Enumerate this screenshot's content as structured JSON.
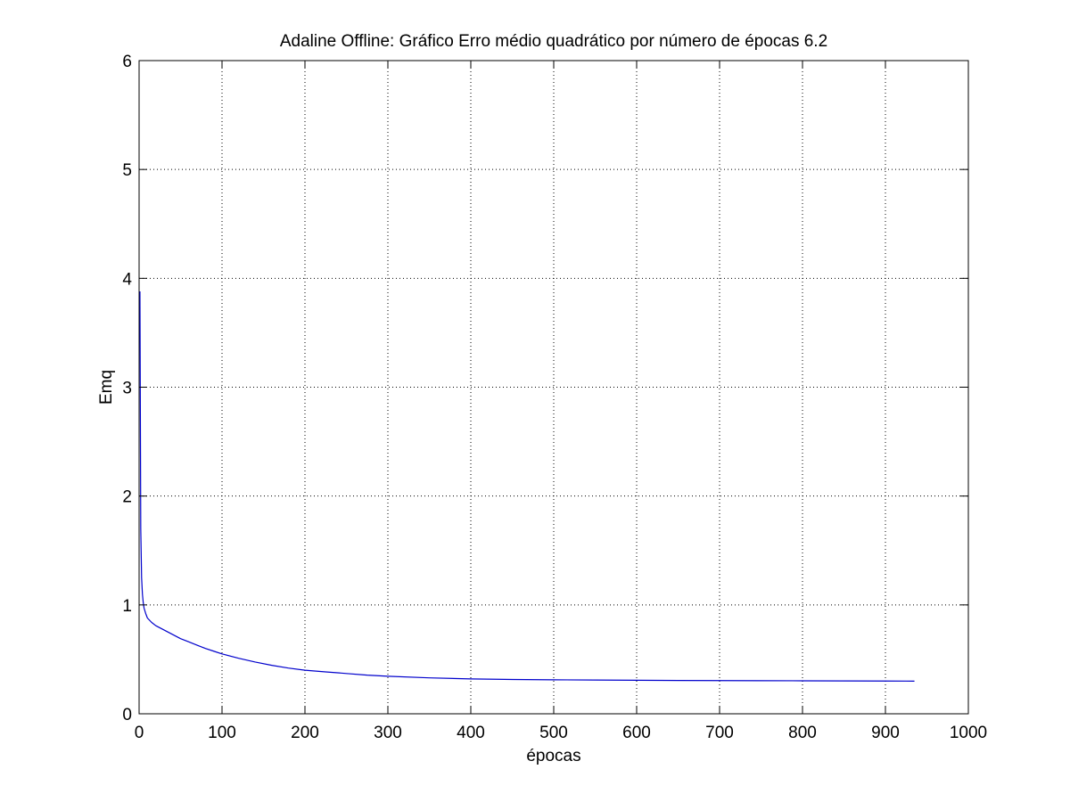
{
  "chart_data": {
    "type": "line",
    "title": "Adaline Offline: Gráfico Erro médio quadrático por número de épocas 6.2",
    "xlabel": "épocas",
    "ylabel": "Emq",
    "xlim": [
      0,
      1000
    ],
    "ylim": [
      0,
      6
    ],
    "xticks": [
      0,
      100,
      200,
      300,
      400,
      500,
      600,
      700,
      800,
      900,
      1000
    ],
    "yticks": [
      0,
      1,
      2,
      3,
      4,
      5,
      6
    ],
    "grid": true,
    "grid_style": "dotted",
    "legend": "none",
    "line_color": "#0000cc",
    "series": [
      {
        "x": [
          1,
          2,
          3,
          4,
          5,
          6,
          8,
          10,
          15,
          20,
          30,
          40,
          50,
          60,
          70,
          80,
          90,
          100,
          120,
          140,
          160,
          180,
          200,
          225,
          250,
          275,
          300,
          350,
          400,
          450,
          500,
          550,
          600,
          650,
          700,
          750,
          800,
          850,
          900,
          935
        ],
        "y": [
          3.88,
          1.7,
          1.25,
          1.1,
          1.02,
          0.97,
          0.92,
          0.88,
          0.84,
          0.81,
          0.77,
          0.73,
          0.69,
          0.66,
          0.63,
          0.6,
          0.575,
          0.55,
          0.51,
          0.475,
          0.445,
          0.42,
          0.4,
          0.385,
          0.37,
          0.355,
          0.345,
          0.33,
          0.32,
          0.315,
          0.312,
          0.31,
          0.308,
          0.306,
          0.305,
          0.304,
          0.303,
          0.302,
          0.301,
          0.3
        ]
      }
    ]
  }
}
